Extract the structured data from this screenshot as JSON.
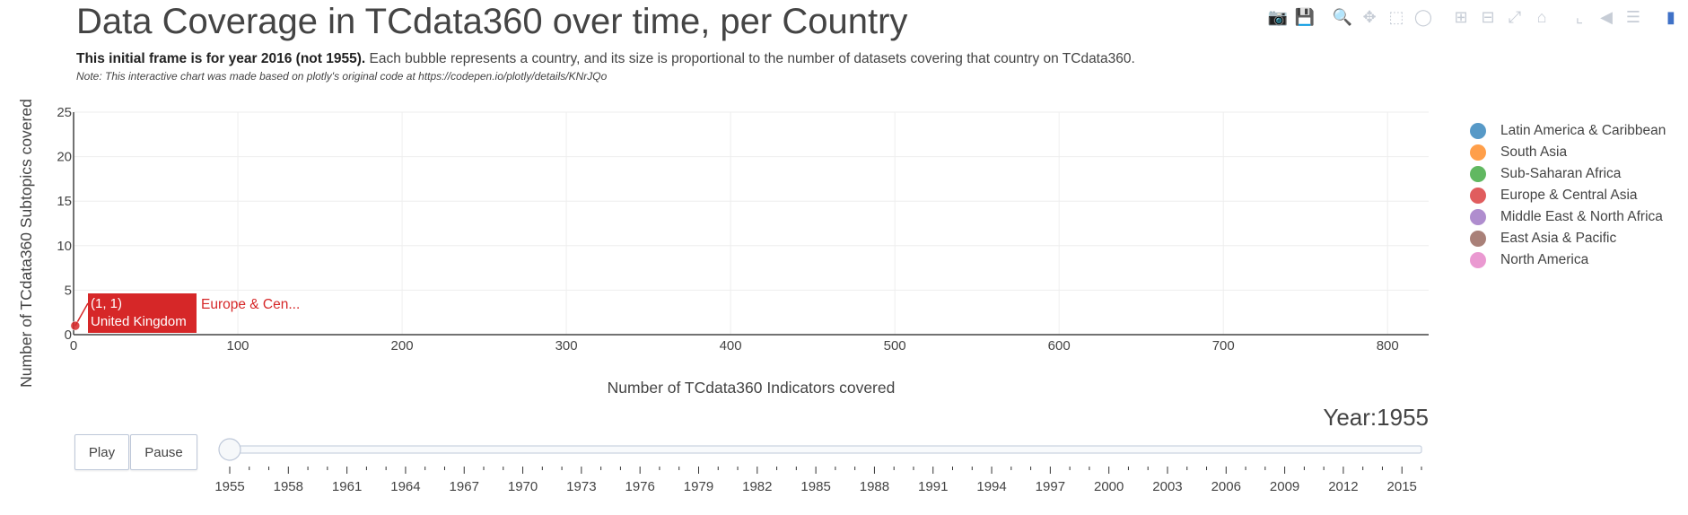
{
  "header": {
    "title": "Data Coverage in TCdata360 over time, per Country",
    "subtitle_bold": "This initial frame is for year 2016 (not 1955).",
    "subtitle_rest": " Each bubble represents a country, and its size is proportional to the number of datasets covering that country on TCdata360.",
    "note": "Note: This interactive chart was made based on plotly's original code at https://codepen.io/plotly/details/KNrJQo"
  },
  "modebar": {
    "icons": [
      "camera-icon",
      "save-icon",
      "zoom-icon",
      "pan-icon",
      "box-select-icon",
      "lasso-icon",
      "zoom-in-icon",
      "zoom-out-icon",
      "autoscale-icon",
      "home-icon",
      "spike-lines-icon",
      "hover-closest-icon",
      "hover-compare-icon",
      "plotly-logo-icon"
    ]
  },
  "chart_data": {
    "type": "scatter",
    "xlabel": "Number of TCdata360 Indicators covered",
    "ylabel": "Number of TCdata360 Subtopics covered",
    "xlim": [
      0,
      825
    ],
    "ylim": [
      0,
      25
    ],
    "xticks": [
      0,
      100,
      200,
      300,
      400,
      500,
      600,
      700,
      800
    ],
    "yticks": [
      0,
      5,
      10,
      15,
      20,
      25
    ],
    "grid": true,
    "legend_position": "right",
    "series": [
      {
        "name": "Latin America & Caribbean",
        "color": "#1f77b4",
        "points": []
      },
      {
        "name": "South Asia",
        "color": "#ff7f0e",
        "points": []
      },
      {
        "name": "Sub-Saharan Africa",
        "color": "#2ca02c",
        "points": []
      },
      {
        "name": "Europe & Central Asia",
        "color": "#d62728",
        "points": [
          {
            "x": 1,
            "y": 1,
            "label": "United Kingdom"
          }
        ]
      },
      {
        "name": "Middle East & North Africa",
        "color": "#9467bd",
        "points": []
      },
      {
        "name": "East Asia & Pacific",
        "color": "#8c564b",
        "points": []
      },
      {
        "name": "North America",
        "color": "#e377c2",
        "points": []
      }
    ],
    "hover": {
      "coords_text": "(1, 1)",
      "point_label": "United Kingdom",
      "series_name_truncated": "Europe & Cen..."
    }
  },
  "controls": {
    "play_label": "Play",
    "pause_label": "Pause",
    "year_label": "Year:1955",
    "slider_value": 1955,
    "slider_min": 1955,
    "slider_max": 2016,
    "slider_labels": [
      "1955",
      "1958",
      "1961",
      "1964",
      "1967",
      "1970",
      "1973",
      "1976",
      "1979",
      "1982",
      "1985",
      "1988",
      "1991",
      "1994",
      "1997",
      "2000",
      "2003",
      "2006",
      "2009",
      "2012",
      "2015"
    ]
  }
}
